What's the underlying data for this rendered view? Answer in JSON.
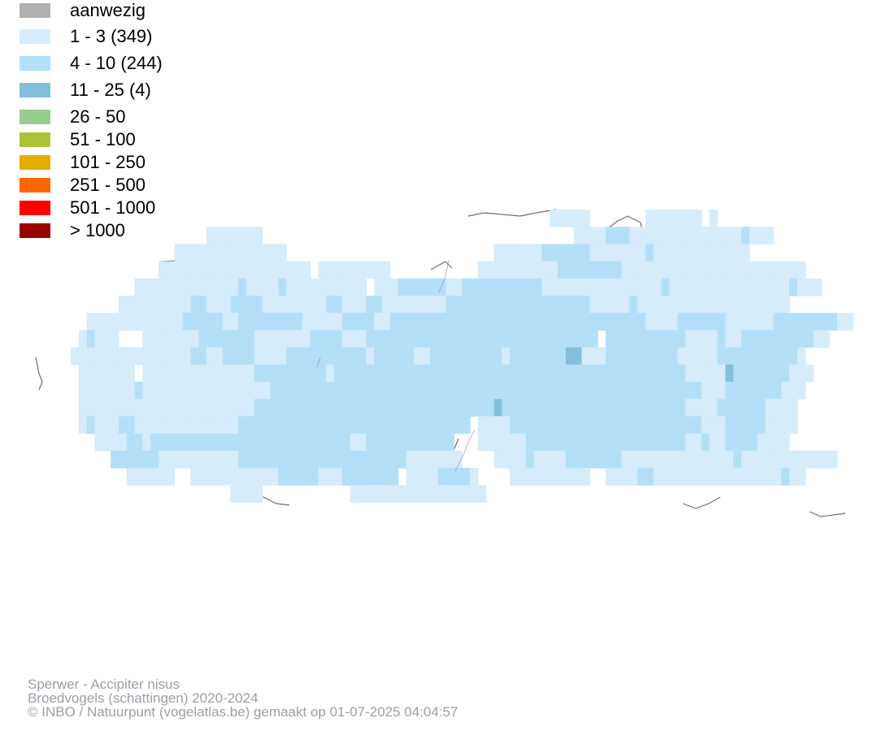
{
  "legend": [
    {
      "label": "aanwezig",
      "color": "#b0b0b0"
    },
    {
      "label": "1 - 3 (349)",
      "color": "#d6ecfa"
    },
    {
      "label": "4 - 10 (244)",
      "color": "#b3e0f8"
    },
    {
      "label": "11 - 25 (4)",
      "color": "#82bfdc"
    },
    {
      "label": "26 - 50",
      "color": "#99cc8f"
    },
    {
      "label": "51 - 100",
      "color": "#acc234"
    },
    {
      "label": "101 - 250",
      "color": "#e2ae00"
    },
    {
      "label": "251 - 500",
      "color": "#ff6600"
    },
    {
      "label": "501 - 1000",
      "color": "#ff0000"
    },
    {
      "label": "> 1000",
      "color": "#990000"
    }
  ],
  "footer": {
    "species": "Sperwer - Accipiter nisus",
    "dataset": "Broedvogels (schattingen) 2020-2024",
    "credit": "© INBO / Natuurpunt (vogelatlas.be) gemaakt op 01-07-2025 04:04:57"
  },
  "map": {
    "rows": [
      "............................................................................................................................................................................................................................................................................................................",
      "..................................................................DDDDD.......DDDDDDD.D..........................",
      ".......................DDDDDDD.......................................DDDDBBBDDDDDDDDDDDDDDBDDD...................",
      "...................DDDDDDDDDDDDDD..........................DDDDDDBBBBBBDDDDDDDBDDDDDDDDDDDD.................",
      ".................DDDDDDDDDDDDDDDDDDD.DDDDDDDDD...........DDDDDDDDDDBBBBBBBBDDDDDDDDDDDDDDDDDDDDDDD...............",
      "..............DDDDDDDDDDDDDBDDDDBDDDDDDDDDD.DDDBBBBBBDDBBBBBBBBBBDDDDDDDDDDDDDDDBDDDDDDDDDDDDDDDBDDD............",
      "............DDDDDDDDDBBDDDBBBBDDDDDDDDBBDDDBBDDDDDDDDBBBBBBBBBBBBBBBBBBDDDDDBDDDDDDDDDDDDDDDDDDD.............",
      "........DDDDDDDDDDDDBBBBBDDBBBBBBBBDDDDDBBBBDDBBBBBBBBBBBBBBBBBBBBBBBBBBBBBBBBDDDDBBBBBBDDDDDDBBBBBBBBDD.........",
      ".......DBDDD...DDDDDDDBBBBBBBDDDDDDDBBBBDDDBBBBBBBBBBBBBBBBBBBBBBBBBBBBB.BBBBBBBBBBDDDDBDDBBBBBBBBBDD.........",
      "......DDDDDDDDDDDDDDDBBDDBBBBDDDDBBBBBBBBBBDBBBBBDDBBBBBBBBBDBBBBBBBCCDDDBBBBBBBBBDDDDDBBBBBBBBBBD.........",
      ".......DDDDDDD.DDDDDDDDDDDDDDBBBBBBBBBDBBBBBBBBBBBBBBBBBBBBBBBBBBBBBBBBBBBBBBBBBBBBDDDDDCBBBBBBBDDD.........",
      ".......DDDDDDDBDDDDDDDDDDDDDDDDBBBBBBBBBBBBBBBBBBBBBBBBBBBBBBBBBBBBBBBBBBBBBBBBBBBBBBDDDBBBBBBBDDD..........",
      ".......DDDDDDDDDDDDDDDDDDDDDDBBBBBBBBBBBBBBBBBBBBBBBBBBBBBBCBBBBBBBBBBBBBBBBBBBBBBBDDDDBBBBBBDDDD..........",
      ".......DBDDDBBDDDDDDDDDDDDDBBBBBBBBBBBBBBBBBBBBBBBBBBBBB.DDDDBBBBBBBBBBBBBBBBBBBBBBBBDDDBBBBBDDDD...........",
      ".........DDDDBBDBBBBBBBBBBBBBBBBBBBBBBBBBDDBBBBBBBBBBB...DDDDDDBBBBBBBBBBBBBBBBBBBBDDBDDBBBBDDDD...........",
      "...........BBBBBBDDDDDDDDDDBBBBBBBBBBBBBBBBBBBBBDDDDDDD....DDDDBDDDDBBBBBBBDDDDDDDDDDDDDDBDDDDDDDDDDDD........",
      ".............DDDDDD..DDDDDDDDDDDBBBBBDDDBBBBBBB.DDDDBBBBD....DDDDDDDDDD..DDDDBBDDDDDDDDDDDDDDDDBDD.......",
      "..........................DDDD...........DDDDDDDDDDDDDDDDD................................................."
    ]
  }
}
